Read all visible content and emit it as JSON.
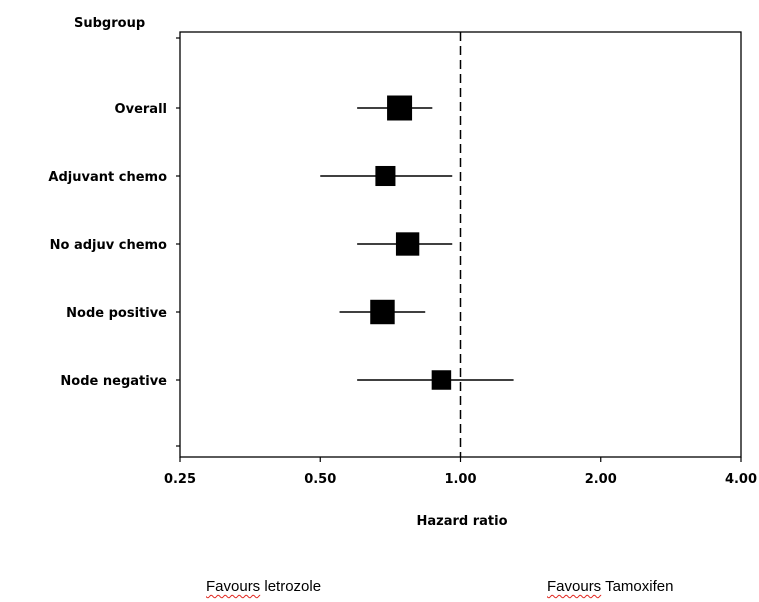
{
  "chart_data": {
    "type": "forest",
    "title": "",
    "group_header": "Subgroup",
    "xlabel": "Hazard ratio",
    "ylabel": "",
    "x_scale": "log",
    "xlim": [
      0.25,
      4.0
    ],
    "x_ticks": [
      0.25,
      0.5,
      1.0,
      2.0,
      4.0
    ],
    "x_tick_labels": [
      "0.25",
      "0.50",
      "1.00",
      "2.00",
      "4.00"
    ],
    "reference_line": 1.0,
    "grid": false,
    "rows": [
      {
        "label": "Overall",
        "hr": 0.74,
        "ci_low": 0.6,
        "ci_high": 0.87,
        "weight": 1.0
      },
      {
        "label": "Adjuvant chemo",
        "hr": 0.69,
        "ci_low": 0.5,
        "ci_high": 0.96,
        "weight": 0.55
      },
      {
        "label": "No adjuv chemo",
        "hr": 0.77,
        "ci_low": 0.6,
        "ci_high": 0.96,
        "weight": 0.85
      },
      {
        "label": "Node positive",
        "hr": 0.68,
        "ci_low": 0.55,
        "ci_high": 0.84,
        "weight": 0.95
      },
      {
        "label": "Node negative",
        "hr": 0.91,
        "ci_low": 0.6,
        "ci_high": 1.3,
        "weight": 0.5
      }
    ]
  },
  "footer": {
    "favours_left": {
      "word": "Favours",
      "rest": " letrozole"
    },
    "favours_right": {
      "word": "Favours",
      "rest": " Tamoxifen"
    }
  }
}
